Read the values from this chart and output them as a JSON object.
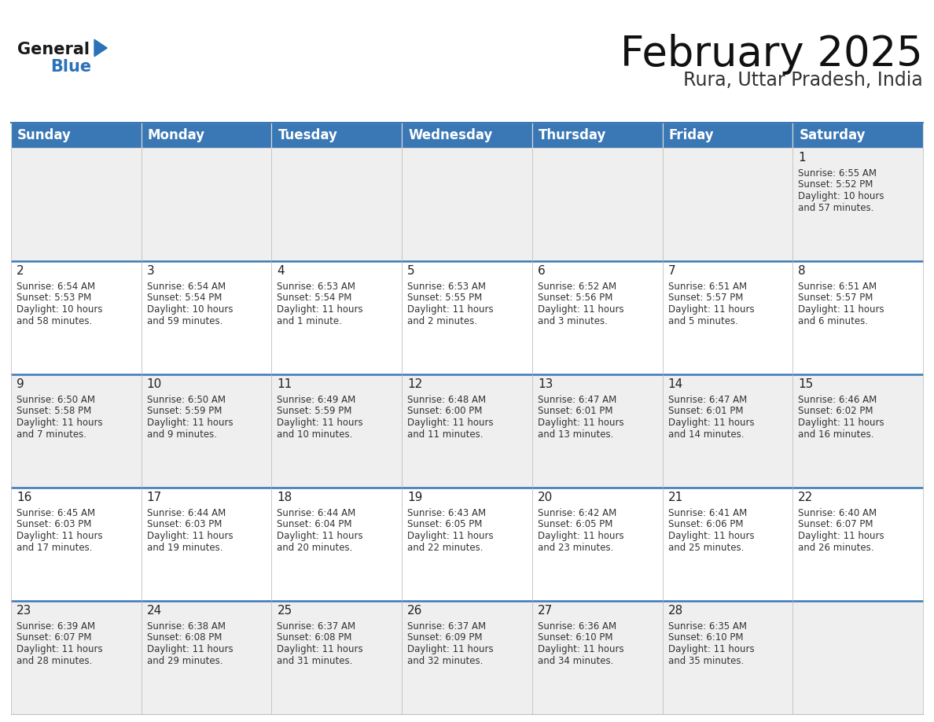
{
  "title": "February 2025",
  "subtitle": "Rura, Uttar Pradesh, India",
  "header_bg": "#3a78b5",
  "header_text": "#ffffff",
  "row_bg_light": "#efefef",
  "row_bg_white": "#ffffff",
  "cell_border": "#c0c0c0",
  "week_divider": "#3a78b5",
  "day_headers": [
    "Sunday",
    "Monday",
    "Tuesday",
    "Wednesday",
    "Thursday",
    "Friday",
    "Saturday"
  ],
  "title_fontsize": 38,
  "subtitle_fontsize": 17,
  "header_fontsize": 12,
  "cell_fontsize": 8.5,
  "day_num_fontsize": 11,
  "logo_general_color": "#1a1a1a",
  "logo_blue_color": "#2a72b8",
  "calendar": [
    [
      {
        "day": null,
        "info": ""
      },
      {
        "day": null,
        "info": ""
      },
      {
        "day": null,
        "info": ""
      },
      {
        "day": null,
        "info": ""
      },
      {
        "day": null,
        "info": ""
      },
      {
        "day": null,
        "info": ""
      },
      {
        "day": 1,
        "info": "Sunrise: 6:55 AM\nSunset: 5:52 PM\nDaylight: 10 hours\nand 57 minutes."
      }
    ],
    [
      {
        "day": 2,
        "info": "Sunrise: 6:54 AM\nSunset: 5:53 PM\nDaylight: 10 hours\nand 58 minutes."
      },
      {
        "day": 3,
        "info": "Sunrise: 6:54 AM\nSunset: 5:54 PM\nDaylight: 10 hours\nand 59 minutes."
      },
      {
        "day": 4,
        "info": "Sunrise: 6:53 AM\nSunset: 5:54 PM\nDaylight: 11 hours\nand 1 minute."
      },
      {
        "day": 5,
        "info": "Sunrise: 6:53 AM\nSunset: 5:55 PM\nDaylight: 11 hours\nand 2 minutes."
      },
      {
        "day": 6,
        "info": "Sunrise: 6:52 AM\nSunset: 5:56 PM\nDaylight: 11 hours\nand 3 minutes."
      },
      {
        "day": 7,
        "info": "Sunrise: 6:51 AM\nSunset: 5:57 PM\nDaylight: 11 hours\nand 5 minutes."
      },
      {
        "day": 8,
        "info": "Sunrise: 6:51 AM\nSunset: 5:57 PM\nDaylight: 11 hours\nand 6 minutes."
      }
    ],
    [
      {
        "day": 9,
        "info": "Sunrise: 6:50 AM\nSunset: 5:58 PM\nDaylight: 11 hours\nand 7 minutes."
      },
      {
        "day": 10,
        "info": "Sunrise: 6:50 AM\nSunset: 5:59 PM\nDaylight: 11 hours\nand 9 minutes."
      },
      {
        "day": 11,
        "info": "Sunrise: 6:49 AM\nSunset: 5:59 PM\nDaylight: 11 hours\nand 10 minutes."
      },
      {
        "day": 12,
        "info": "Sunrise: 6:48 AM\nSunset: 6:00 PM\nDaylight: 11 hours\nand 11 minutes."
      },
      {
        "day": 13,
        "info": "Sunrise: 6:47 AM\nSunset: 6:01 PM\nDaylight: 11 hours\nand 13 minutes."
      },
      {
        "day": 14,
        "info": "Sunrise: 6:47 AM\nSunset: 6:01 PM\nDaylight: 11 hours\nand 14 minutes."
      },
      {
        "day": 15,
        "info": "Sunrise: 6:46 AM\nSunset: 6:02 PM\nDaylight: 11 hours\nand 16 minutes."
      }
    ],
    [
      {
        "day": 16,
        "info": "Sunrise: 6:45 AM\nSunset: 6:03 PM\nDaylight: 11 hours\nand 17 minutes."
      },
      {
        "day": 17,
        "info": "Sunrise: 6:44 AM\nSunset: 6:03 PM\nDaylight: 11 hours\nand 19 minutes."
      },
      {
        "day": 18,
        "info": "Sunrise: 6:44 AM\nSunset: 6:04 PM\nDaylight: 11 hours\nand 20 minutes."
      },
      {
        "day": 19,
        "info": "Sunrise: 6:43 AM\nSunset: 6:05 PM\nDaylight: 11 hours\nand 22 minutes."
      },
      {
        "day": 20,
        "info": "Sunrise: 6:42 AM\nSunset: 6:05 PM\nDaylight: 11 hours\nand 23 minutes."
      },
      {
        "day": 21,
        "info": "Sunrise: 6:41 AM\nSunset: 6:06 PM\nDaylight: 11 hours\nand 25 minutes."
      },
      {
        "day": 22,
        "info": "Sunrise: 6:40 AM\nSunset: 6:07 PM\nDaylight: 11 hours\nand 26 minutes."
      }
    ],
    [
      {
        "day": 23,
        "info": "Sunrise: 6:39 AM\nSunset: 6:07 PM\nDaylight: 11 hours\nand 28 minutes."
      },
      {
        "day": 24,
        "info": "Sunrise: 6:38 AM\nSunset: 6:08 PM\nDaylight: 11 hours\nand 29 minutes."
      },
      {
        "day": 25,
        "info": "Sunrise: 6:37 AM\nSunset: 6:08 PM\nDaylight: 11 hours\nand 31 minutes."
      },
      {
        "day": 26,
        "info": "Sunrise: 6:37 AM\nSunset: 6:09 PM\nDaylight: 11 hours\nand 32 minutes."
      },
      {
        "day": 27,
        "info": "Sunrise: 6:36 AM\nSunset: 6:10 PM\nDaylight: 11 hours\nand 34 minutes."
      },
      {
        "day": 28,
        "info": "Sunrise: 6:35 AM\nSunset: 6:10 PM\nDaylight: 11 hours\nand 35 minutes."
      },
      {
        "day": null,
        "info": ""
      }
    ]
  ]
}
